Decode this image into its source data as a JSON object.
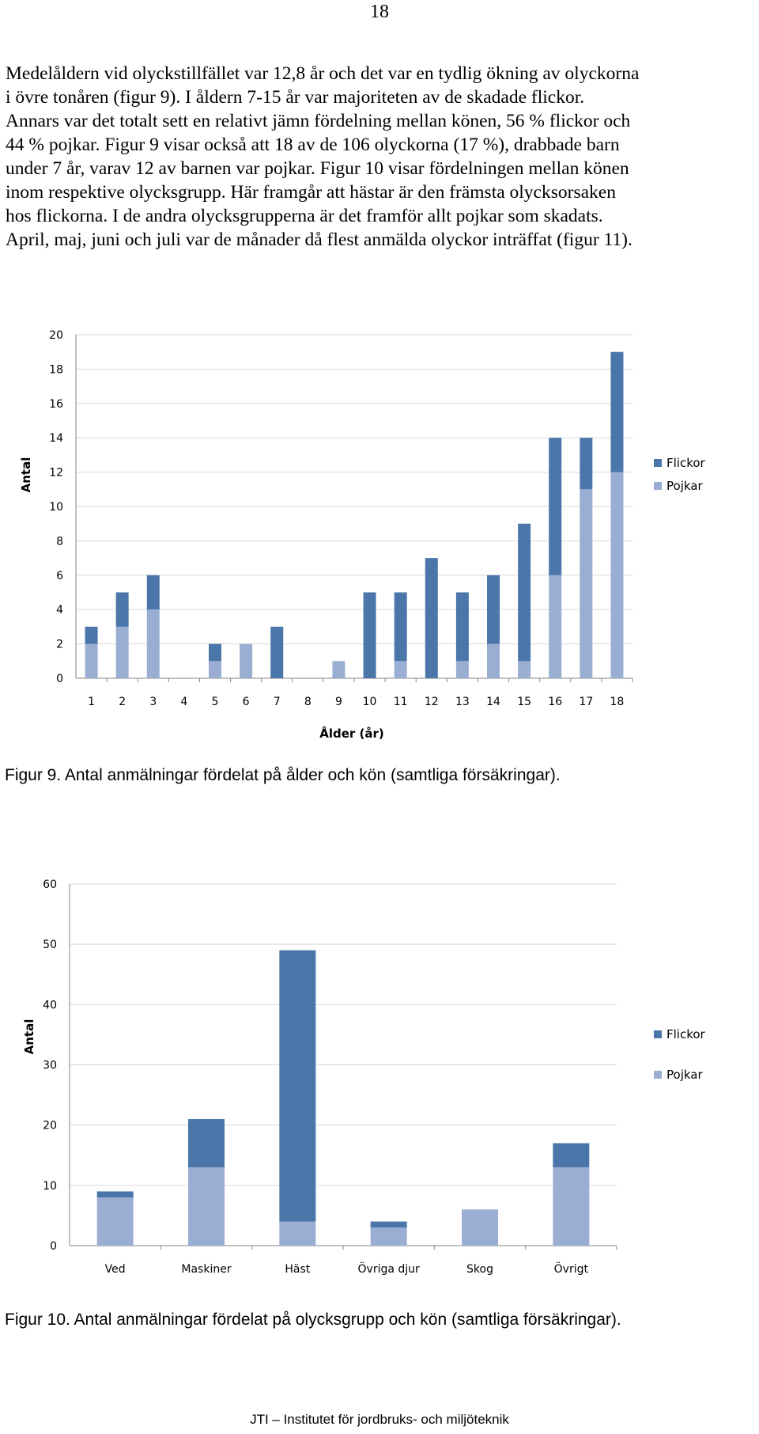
{
  "page": {
    "number": "18",
    "paragraph_lines": [
      "Medelåldern vid olyckstillfället var 12,8 år och det var en tydlig ökning av olyckorna",
      "i övre tonåren (figur 9). I åldern 7-15 år var majoriteten av de skadade flickor.",
      "Annars var det totalt sett en relativt jämn fördelning mellan könen, 56 % flickor och",
      "44 % pojkar. Figur 9 visar också att 18 av de 106 olyckorna (17 %), drabbade barn",
      "under 7 år, varav 12 av barnen var pojkar. Figur 10 visar fördelningen mellan könen",
      "inom respektive olycksgrupp. Här framgår att hästar är den främsta olycksorsaken",
      "hos flickorna. I de andra olycksgrupperna är det framför allt pojkar som skadats.",
      "April, maj, juni och juli var de månader då flest anmälda olyckor inträffat (figur 11)."
    ],
    "figure9_caption": "Figur 9. Antal anmälningar fördelat på ålder och kön (samtliga försäkringar).",
    "figure10_caption": "Figur 10. Antal anmälningar fördelat på olycksgrupp och kön (samtliga försäkringar).",
    "footer": "JTI – Institutet för jordbruks- och miljöteknik"
  },
  "colors": {
    "flickor": "#4a76aa",
    "pojkar": "#9aaed3",
    "grid": "#d9d9d9",
    "axis": "#868686"
  },
  "chart_data": [
    {
      "type": "bar",
      "stacked": true,
      "categories": [
        "1",
        "2",
        "3",
        "4",
        "5",
        "6",
        "7",
        "8",
        "9",
        "10",
        "11",
        "12",
        "13",
        "14",
        "15",
        "16",
        "17",
        "18"
      ],
      "series": [
        {
          "name": "Pojkar",
          "values": [
            2,
            3,
            4,
            0,
            1,
            2,
            0,
            0,
            1,
            0,
            1,
            0,
            1,
            2,
            1,
            6,
            11,
            12
          ]
        },
        {
          "name": "Flickor",
          "values": [
            1,
            2,
            2,
            0,
            1,
            0,
            3,
            0,
            0,
            5,
            4,
            7,
            4,
            4,
            8,
            8,
            3,
            7
          ]
        }
      ],
      "xlabel": "Ålder (år)",
      "ylabel": "Antal",
      "ylim": [
        0,
        20
      ],
      "yticks": [
        0,
        2,
        4,
        6,
        8,
        10,
        12,
        14,
        16,
        18,
        20
      ],
      "grid": "horizontal",
      "legend": {
        "position": "right",
        "entries": [
          "Flickor",
          "Pojkar"
        ]
      }
    },
    {
      "type": "bar",
      "stacked": true,
      "categories": [
        "Ved",
        "Maskiner",
        "Häst",
        "Övriga djur",
        "Skog",
        "Övrigt"
      ],
      "series": [
        {
          "name": "Pojkar",
          "values": [
            8,
            13,
            4,
            3,
            6,
            13
          ]
        },
        {
          "name": "Flickor",
          "values": [
            1,
            8,
            45,
            1,
            0,
            4
          ]
        }
      ],
      "xlabel": "",
      "ylabel": "Antal",
      "ylim": [
        0,
        60
      ],
      "yticks": [
        0,
        10,
        20,
        30,
        40,
        50,
        60
      ],
      "grid": "horizontal",
      "legend": {
        "position": "right",
        "entries": [
          "Flickor",
          "Pojkar"
        ]
      }
    }
  ]
}
